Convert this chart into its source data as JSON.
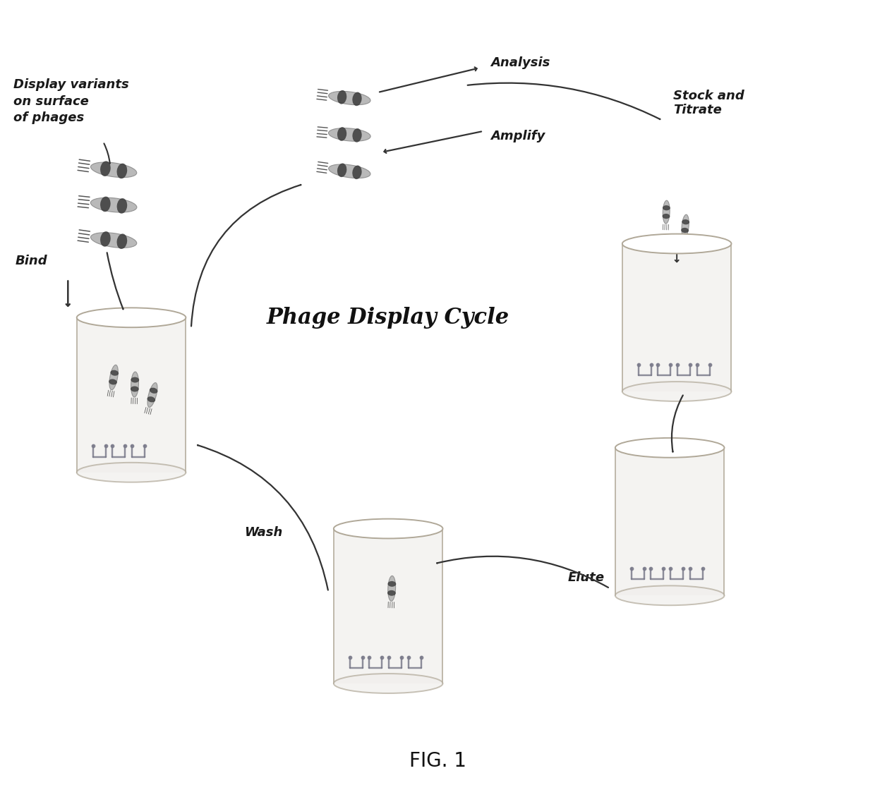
{
  "title": "Phage Display Cycle",
  "fig_label": "FIG. 1",
  "labels": {
    "display_variants": "Display variants\non surface\nof phages",
    "analysis": "Analysis",
    "amplify": "Amplify",
    "stock_titrate": "Stock and\nTitrate",
    "bind": "Bind",
    "wash": "Wash",
    "elute": "Elute"
  },
  "bg_color": "#ffffff",
  "phage_light_color": "#b0b0b0",
  "phage_mid_color": "#888888",
  "phage_dark_color": "#2a2a2a",
  "container_fill": "#f0eeec",
  "container_edge": "#b0a898",
  "antibody_color": "#7a7a8a",
  "arrow_color": "#333333",
  "text_color": "#1a1a1a",
  "title_color": "#111111",
  "label_fontsize": 13,
  "title_fontsize": 22,
  "figlabel_fontsize": 20
}
